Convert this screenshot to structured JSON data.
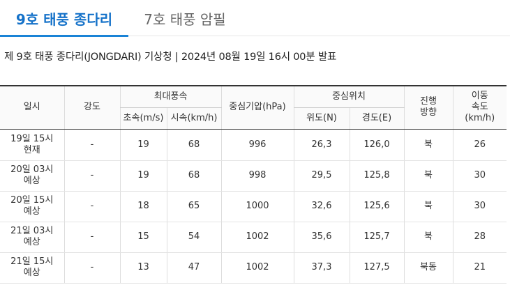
{
  "tabs": [
    {
      "label": "9호 태풍 종다리",
      "active": true
    },
    {
      "label": "7호 태풍 암필",
      "active": false
    }
  ],
  "bulletin": "제 9호 태풍 종다리(JONGDARI) 기상청 | 2024년 08월 19일 16시 00분 발표",
  "table": {
    "headers": {
      "time": "일시",
      "intensity": "강도",
      "max_wind": "최대풍속",
      "wind_ms": "초속(m/s)",
      "wind_kmh": "시속(km/h)",
      "pressure": "중심기압(hPa)",
      "position": "중심위치",
      "lat": "위도(N)",
      "lon": "경도(E)",
      "direction_l1": "진행",
      "direction_l2": "방향",
      "speed_l1": "이동",
      "speed_l2": "속도",
      "speed_l3": "(km/h)"
    },
    "rows": [
      {
        "time": "19일 15시",
        "type": "현재",
        "intensity": "-",
        "wind_ms": "19",
        "wind_kmh": "68",
        "pressure": "996",
        "lat": "26,3",
        "lon": "126,0",
        "direction": "북",
        "speed": "26"
      },
      {
        "time": "20일 03시",
        "type": "예상",
        "intensity": "-",
        "wind_ms": "19",
        "wind_kmh": "68",
        "pressure": "998",
        "lat": "29,5",
        "lon": "125,8",
        "direction": "북",
        "speed": "30"
      },
      {
        "time": "20일 15시",
        "type": "예상",
        "intensity": "-",
        "wind_ms": "18",
        "wind_kmh": "65",
        "pressure": "1000",
        "lat": "32,6",
        "lon": "125,6",
        "direction": "북",
        "speed": "30"
      },
      {
        "time": "21일 03시",
        "type": "예상",
        "intensity": "-",
        "wind_ms": "15",
        "wind_kmh": "54",
        "pressure": "1002",
        "lat": "35,6",
        "lon": "125,7",
        "direction": "북",
        "speed": "28"
      },
      {
        "time": "21일 15시",
        "type": "예상",
        "intensity": "-",
        "wind_ms": "13",
        "wind_kmh": "47",
        "pressure": "1002",
        "lat": "37,3",
        "lon": "127,5",
        "direction": "북동",
        "speed": "21"
      }
    ]
  },
  "colors": {
    "accent": "#1a83d6",
    "active_tab_text": "#1572c9"
  }
}
